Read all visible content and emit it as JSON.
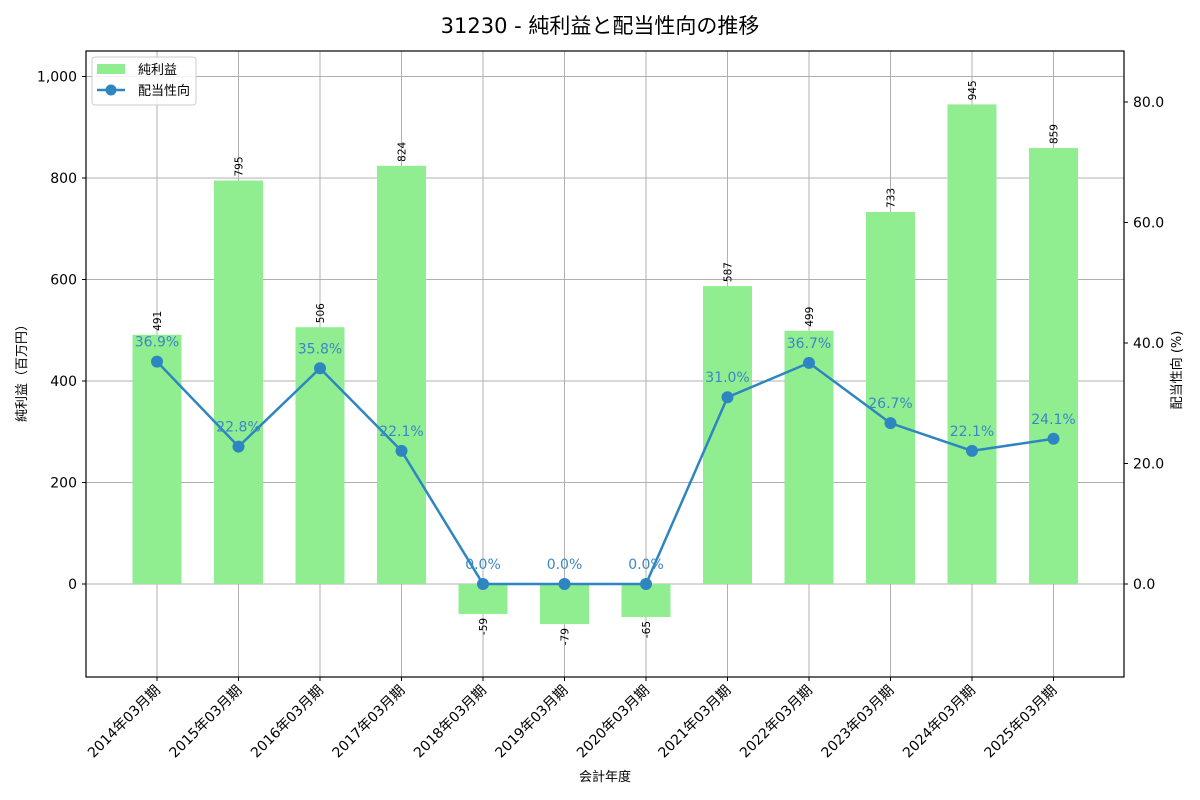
{
  "chart_data": {
    "type": "bar+line",
    "title": "31230 - 純利益と配当性向の推移",
    "xlabel": "会計年度",
    "ylabel": "純利益（百万円）",
    "y2label": "配当性向 (%)",
    "categories": [
      "2014年03月期",
      "2015年03月期",
      "2016年03月期",
      "2017年03月期",
      "2018年03月期",
      "2019年03月期",
      "2020年03月期",
      "2021年03月期",
      "2022年03月期",
      "2023年03月期",
      "2024年03月期",
      "2025年03月期"
    ],
    "series": [
      {
        "name": "純利益",
        "type": "bar",
        "axis": "left",
        "color": "#90ee90",
        "values": [
          491,
          795,
          506,
          824,
          -59,
          -79,
          -65,
          587,
          499,
          733,
          945,
          859
        ],
        "labels": [
          "491",
          "795",
          "506",
          "824",
          "-59",
          "-79",
          "-65",
          "587",
          "499",
          "733",
          "945",
          "859"
        ]
      },
      {
        "name": "配当性向",
        "type": "line",
        "axis": "right",
        "color": "#2e86c1",
        "values": [
          36.9,
          22.8,
          35.8,
          22.1,
          0.0,
          0.0,
          0.0,
          31.0,
          36.7,
          26.7,
          22.1,
          24.1
        ],
        "labels": [
          "36.9%",
          "22.8%",
          "35.8%",
          "22.1%",
          "0.0%",
          "0.0%",
          "0.0%",
          "31.0%",
          "36.7%",
          "26.7%",
          "22.1%",
          "24.1%"
        ]
      }
    ],
    "ylim": [
      -183,
      1050
    ],
    "y2lim": [
      -15.4,
      88.5
    ],
    "yticks": [
      0,
      200,
      400,
      600,
      800,
      1000
    ],
    "ytick_labels": [
      "0",
      "200",
      "400",
      "600",
      "800",
      "1,000"
    ],
    "y2ticks": [
      0,
      20,
      40,
      60,
      80
    ],
    "y2tick_labels": [
      "0.0",
      "20.0",
      "40.0",
      "60.0",
      "80.0"
    ],
    "grid": true,
    "legend": {
      "position": "upper left",
      "entries": [
        "純利益",
        "配当性向"
      ]
    }
  },
  "colors": {
    "bar": "#90ee90",
    "line": "#2e86c1",
    "line_label": "#3a87c7",
    "grid": "#b0b0b0"
  }
}
